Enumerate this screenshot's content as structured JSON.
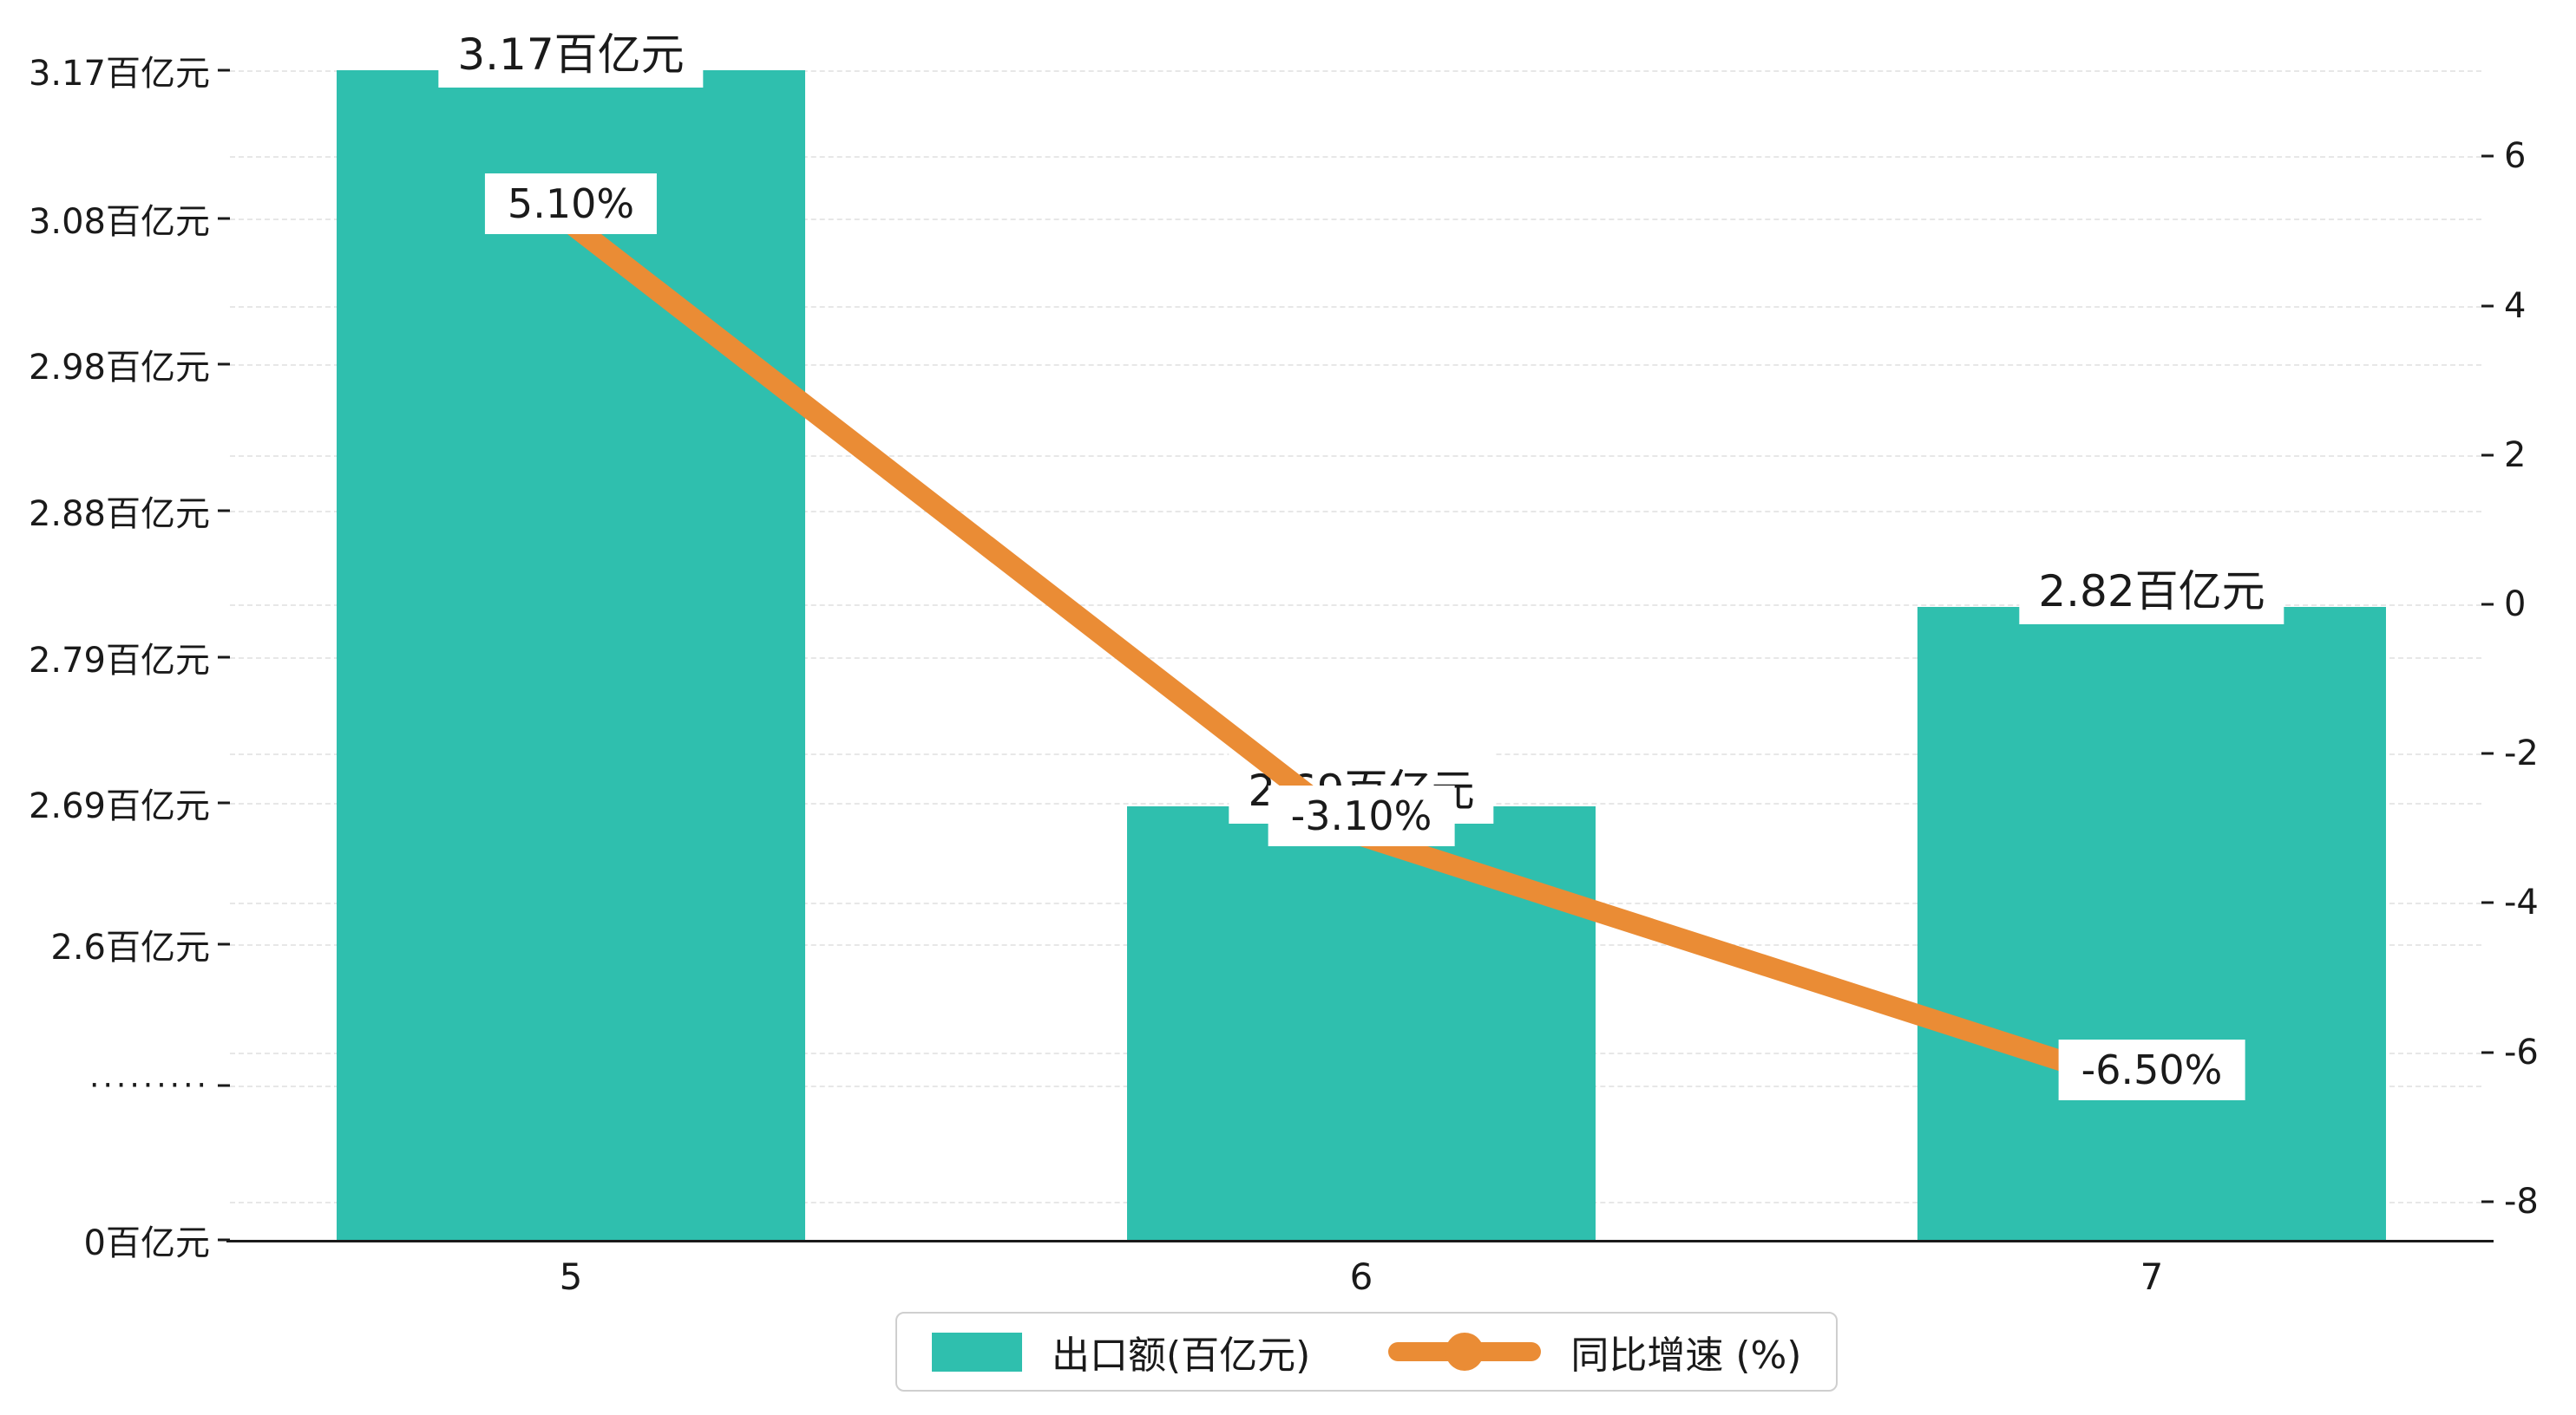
{
  "chart_data": {
    "type": "bar",
    "categories": [
      "5",
      "6",
      "7"
    ],
    "series": [
      {
        "name": "出口额(百亿元)",
        "chart": "bar",
        "values": [
          3.17,
          2.69,
          2.82
        ],
        "unit": "百亿元",
        "color": "#2fbfae",
        "point_labels": [
          "3.17百亿元",
          "2.69百亿元",
          "2.82百亿元"
        ]
      },
      {
        "name": "同比增速 (%)",
        "chart": "line",
        "values": [
          5.1,
          -3.1,
          -6.5
        ],
        "unit": "%",
        "color": "#ea8c35",
        "point_labels": [
          "5.10%",
          "-3.10%",
          "-6.50%"
        ]
      }
    ],
    "left_axis_ticks": [
      "3.17百亿元",
      "3.08百亿元",
      "2.98百亿元",
      "2.88百亿元",
      "2.79百亿元",
      "2.69百亿元",
      "2.6百亿元",
      "·········",
      "0百亿元"
    ],
    "left_axis_tick_values": [
      3.17,
      3.08,
      2.98,
      2.88,
      2.79,
      2.69,
      2.6,
      null,
      0
    ],
    "right_axis_ticks": [
      "6",
      "4",
      "2",
      "0",
      "-2",
      "-4",
      "-6",
      "-8"
    ],
    "right_axis_tick_values": [
      6,
      4,
      2,
      0,
      -2,
      -4,
      -6,
      -8
    ],
    "axis_break": true,
    "grid": "dashed horizontal",
    "legend_position": "bottom-center",
    "title": ""
  },
  "colors": {
    "bar": "#2fbfae",
    "line": "#ea8c35",
    "grid": "#e7e7e7",
    "axis": "#1a1a1a"
  }
}
